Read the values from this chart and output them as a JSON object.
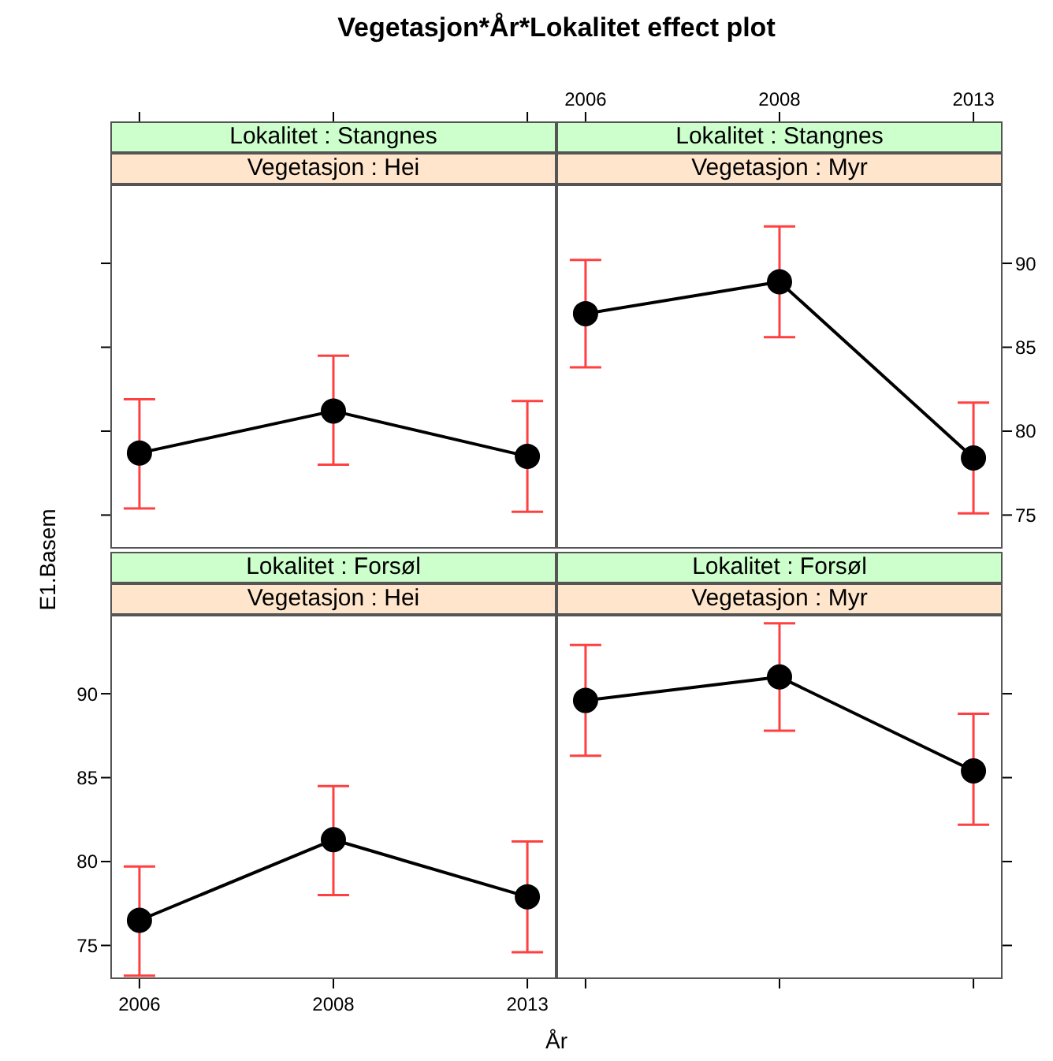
{
  "chart_data": [
    {
      "type": "line",
      "title": "Lokalitet : Stangnes",
      "subtitle": "Vegetasjon : Hei",
      "annotations": [
        "Vegetasjon*År*Lokalitet effect plot"
      ],
      "categories": [
        "2006",
        "2008",
        "2013"
      ],
      "series": [
        {
          "color": "#000000",
          "values": [
            78.7,
            81.2,
            78.5
          ],
          "errors": [
            [
              75.4,
              81.9
            ],
            [
              78.0,
              84.5
            ],
            [
              75.2,
              81.8
            ]
          ]
        }
      ],
      "ylim": [
        73,
        94.7
      ],
      "yticks": [
        75,
        80,
        85,
        90
      ],
      "tick_labels": false,
      "marker": "circle",
      "line_style": "solid"
    },
    {
      "type": "line",
      "title": "Lokalitet : Stangnes",
      "subtitle": "Vegetasjon : Myr",
      "categories": [
        "2006",
        "2008",
        "2013"
      ],
      "series": [
        {
          "color": "#000000",
          "values": [
            87.0,
            88.9,
            78.4
          ],
          "errors": [
            [
              83.8,
              90.2
            ],
            [
              85.6,
              92.2
            ],
            [
              75.1,
              81.7
            ]
          ]
        }
      ],
      "ylim": [
        73,
        94.7
      ],
      "yticks": [
        75,
        80,
        85,
        90
      ],
      "marker": "circle",
      "line_style": "solid"
    },
    {
      "type": "line",
      "title": "Lokalitet : Forsøl",
      "subtitle": "Vegetasjon : Hei",
      "xlabel": "År",
      "ylabel": "E1.Basem",
      "categories": [
        "2006",
        "2008",
        "2013"
      ],
      "series": [
        {
          "color": "#000000",
          "values": [
            76.5,
            81.3,
            77.9
          ],
          "errors": [
            [
              73.2,
              79.7
            ],
            [
              78.0,
              84.5
            ],
            [
              74.6,
              81.2
            ]
          ]
        }
      ],
      "ylim": [
        73,
        94.7
      ],
      "yticks": [
        75,
        80,
        85,
        90
      ],
      "marker": "circle",
      "line_style": "solid"
    },
    {
      "type": "line",
      "title": "Lokalitet : Forsøl",
      "subtitle": "Vegetasjon : Myr",
      "categories": [
        "2006",
        "2008",
        "2013"
      ],
      "series": [
        {
          "color": "#000000",
          "values": [
            89.6,
            91.0,
            85.4
          ],
          "errors": [
            [
              86.3,
              92.9
            ],
            [
              87.8,
              94.2
            ],
            [
              82.2,
              88.8
            ]
          ]
        }
      ],
      "ylim": [
        73,
        94.7
      ],
      "yticks": [
        75,
        80,
        85,
        90
      ],
      "tick_labels": false,
      "marker": "circle",
      "line_style": "solid"
    }
  ]
}
